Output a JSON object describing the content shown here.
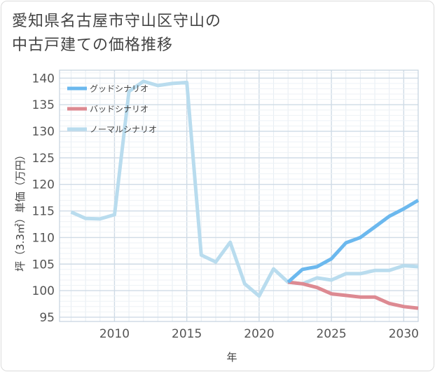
{
  "title_line1": "愛知県名古屋市守山区守山の",
  "title_line2": "中古戸建ての価格推移",
  "chart_data": {
    "type": "line",
    "xlabel": "年",
    "ylabel": "坪（3.3㎡）単価（万円）",
    "xlim": [
      2006.2,
      2031
    ],
    "ylim": [
      94.2,
      141.5
    ],
    "xticks": [
      2010,
      2015,
      2020,
      2025,
      2030
    ],
    "yticks": [
      95,
      100,
      105,
      110,
      115,
      120,
      125,
      130,
      135,
      140
    ],
    "grid": true,
    "legend_position": "top-left",
    "series": [
      {
        "name": "グッドシナリオ",
        "color": "#6bb8ee",
        "x": [
          2022,
          2023,
          2024,
          2025,
          2026,
          2027,
          2028,
          2029,
          2030,
          2031
        ],
        "y": [
          101.6,
          104.0,
          104.5,
          106.0,
          109.0,
          110.0,
          112.0,
          114.0,
          115.4,
          117.0
        ]
      },
      {
        "name": "バッドシナリオ",
        "color": "#dd8a92",
        "x": [
          2022,
          2023,
          2024,
          2025,
          2026,
          2027,
          2028,
          2029,
          2030,
          2031
        ],
        "y": [
          101.6,
          101.3,
          100.6,
          99.4,
          99.1,
          98.8,
          98.8,
          97.6,
          97.0,
          96.7
        ]
      },
      {
        "name": "ノーマルシナリオ",
        "color": "#b9dcee",
        "x": [
          2007,
          2008,
          2009,
          2010,
          2011,
          2012,
          2013,
          2014,
          2015,
          2016,
          2017,
          2018,
          2019,
          2020,
          2021,
          2022,
          2023,
          2024,
          2025,
          2026,
          2027,
          2028,
          2029,
          2030,
          2031
        ],
        "y": [
          114.8,
          113.6,
          113.5,
          114.3,
          137.5,
          139.4,
          138.6,
          139.0,
          139.2,
          106.7,
          105.4,
          109.1,
          101.3,
          99.0,
          104.1,
          101.6,
          101.3,
          102.4,
          102.0,
          103.2,
          103.2,
          103.8,
          103.8,
          104.7,
          104.5
        ]
      }
    ]
  }
}
